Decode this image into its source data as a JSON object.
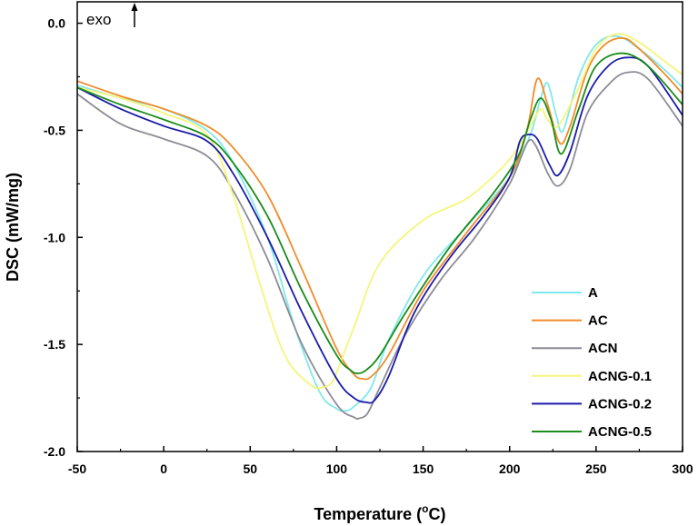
{
  "chart_data": {
    "type": "line",
    "title": "",
    "xlabel": "Temperature (°C)",
    "xlabel_main": "Temperature (",
    "xlabel_sup": "o",
    "xlabel_tail": "C)",
    "ylabel": "DSC (mW/mg)",
    "annotation": "exo",
    "xlim": [
      -50,
      300
    ],
    "ylim": [
      -2.0,
      0.1
    ],
    "xticks": [
      -50,
      0,
      50,
      100,
      150,
      200,
      250,
      300
    ],
    "yticks": [
      0.0,
      -0.5,
      -1.0,
      -1.5,
      -2.0
    ],
    "xtick_labels": [
      "-50",
      "0",
      "50",
      "100",
      "150",
      "200",
      "250",
      "300"
    ],
    "ytick_labels": [
      "0.0",
      "-0.5",
      "-1.0",
      "-1.5",
      "-2.0"
    ],
    "grid": false,
    "legend_position": "bottom-right",
    "series": [
      {
        "name": "A",
        "color": "#7fe8ec",
        "x": [
          -50,
          -25,
          0,
          25,
          40,
          60,
          75,
          90,
          100,
          105,
          110,
          120,
          130,
          150,
          175,
          200,
          212,
          218,
          222,
          227,
          231,
          240,
          250,
          262,
          275,
          290,
          300
        ],
        "y": [
          -0.29,
          -0.35,
          -0.4,
          -0.5,
          -0.65,
          -1.0,
          -1.4,
          -1.72,
          -1.8,
          -1.81,
          -1.79,
          -1.7,
          -1.48,
          -1.18,
          -0.95,
          -0.72,
          -0.52,
          -0.35,
          -0.28,
          -0.43,
          -0.5,
          -0.25,
          -0.1,
          -0.06,
          -0.12,
          -0.22,
          -0.3
        ]
      },
      {
        "name": "AC",
        "color": "#f08c2a",
        "x": [
          -50,
          -25,
          0,
          25,
          40,
          60,
          80,
          100,
          110,
          115,
          120,
          130,
          150,
          175,
          200,
          210,
          216,
          222,
          229,
          235,
          245,
          255,
          266,
          275,
          290,
          300
        ],
        "y": [
          -0.27,
          -0.34,
          -0.4,
          -0.48,
          -0.58,
          -0.8,
          -1.15,
          -1.52,
          -1.64,
          -1.66,
          -1.65,
          -1.55,
          -1.25,
          -0.98,
          -0.72,
          -0.5,
          -0.26,
          -0.38,
          -0.56,
          -0.48,
          -0.22,
          -0.1,
          -0.07,
          -0.12,
          -0.24,
          -0.33
        ]
      },
      {
        "name": "ACN",
        "color": "#8c8c96",
        "x": [
          -50,
          -25,
          0,
          25,
          40,
          60,
          80,
          100,
          110,
          113,
          118,
          125,
          140,
          160,
          180,
          200,
          210,
          215,
          222,
          228,
          235,
          245,
          258,
          268,
          280,
          300
        ],
        "y": [
          -0.33,
          -0.47,
          -0.54,
          -0.62,
          -0.78,
          -1.1,
          -1.5,
          -1.78,
          -1.84,
          -1.845,
          -1.82,
          -1.7,
          -1.45,
          -1.2,
          -1.0,
          -0.75,
          -0.56,
          -0.57,
          -0.7,
          -0.76,
          -0.68,
          -0.42,
          -0.28,
          -0.23,
          -0.26,
          -0.48
        ]
      },
      {
        "name": "ACNG-0.1",
        "color": "#f5f57a",
        "x": [
          -50,
          -25,
          0,
          25,
          40,
          55,
          70,
          85,
          92,
          97,
          100,
          110,
          125,
          150,
          175,
          195,
          205,
          212,
          218,
          222,
          228,
          240,
          250,
          262,
          275,
          290,
          300
        ],
        "y": [
          -0.3,
          -0.35,
          -0.42,
          -0.52,
          -0.8,
          -1.2,
          -1.55,
          -1.69,
          -1.7,
          -1.68,
          -1.63,
          -1.42,
          -1.12,
          -0.92,
          -0.82,
          -0.68,
          -0.58,
          -0.48,
          -0.4,
          -0.45,
          -0.48,
          -0.3,
          -0.12,
          -0.05,
          -0.09,
          -0.18,
          -0.24
        ]
      },
      {
        "name": "ACNG-0.2",
        "color": "#1a1aaa",
        "x": [
          -50,
          -25,
          0,
          25,
          40,
          60,
          80,
          100,
          110,
          117,
          122,
          130,
          145,
          165,
          185,
          200,
          206,
          211,
          216,
          223,
          228,
          235,
          245,
          257,
          268,
          280,
          300
        ],
        "y": [
          -0.3,
          -0.4,
          -0.48,
          -0.55,
          -0.7,
          -1.0,
          -1.35,
          -1.66,
          -1.75,
          -1.77,
          -1.76,
          -1.65,
          -1.35,
          -1.1,
          -0.9,
          -0.72,
          -0.55,
          -0.52,
          -0.54,
          -0.66,
          -0.71,
          -0.6,
          -0.34,
          -0.2,
          -0.16,
          -0.2,
          -0.43
        ]
      },
      {
        "name": "ACNG-0.5",
        "color": "#1a8c1a",
        "x": [
          -50,
          -25,
          0,
          25,
          40,
          60,
          80,
          100,
          108,
          112,
          117,
          125,
          140,
          165,
          190,
          205,
          212,
          218,
          224,
          230,
          240,
          250,
          265,
          280,
          300
        ],
        "y": [
          -0.3,
          -0.38,
          -0.45,
          -0.53,
          -0.65,
          -0.9,
          -1.25,
          -1.55,
          -1.62,
          -1.635,
          -1.62,
          -1.55,
          -1.35,
          -1.05,
          -0.8,
          -0.62,
          -0.45,
          -0.35,
          -0.45,
          -0.61,
          -0.4,
          -0.2,
          -0.14,
          -0.2,
          -0.38
        ]
      }
    ]
  }
}
